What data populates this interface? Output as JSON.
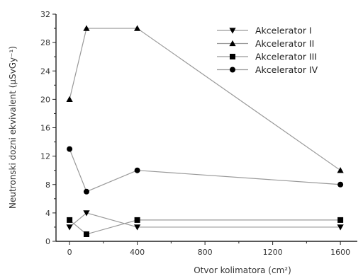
{
  "chart_data": {
    "type": "line",
    "xlabel": "Otvor kolimatora (cm²)",
    "ylabel": "Neutronski dozni ekvivalent (µSvGy⁻¹)",
    "xlim": [
      -80,
      1700
    ],
    "ylim": [
      0,
      32
    ],
    "xticks": [
      0,
      400,
      800,
      1200,
      1600
    ],
    "yticks": [
      0,
      4,
      8,
      12,
      16,
      20,
      24,
      28,
      32
    ],
    "grid": false,
    "legend_position": "top-right",
    "series": [
      {
        "name": "Akcelerator I",
        "marker": "triangle-down",
        "x": [
          0,
          100,
          400,
          1600
        ],
        "y": [
          2,
          4,
          2,
          2
        ]
      },
      {
        "name": "Akcelerator II",
        "marker": "triangle-up",
        "x": [
          0,
          100,
          400,
          1600
        ],
        "y": [
          20,
          30,
          30,
          10
        ]
      },
      {
        "name": "Akcelerator III",
        "marker": "square",
        "x": [
          0,
          100,
          400,
          1600
        ],
        "y": [
          3,
          1,
          3,
          3
        ]
      },
      {
        "name": "Akcelerator IV",
        "marker": "circle",
        "x": [
          0,
          100,
          400,
          1600
        ],
        "y": [
          13,
          7,
          10,
          8
        ]
      }
    ],
    "colors": {
      "line": "#999999",
      "marker": "#000000",
      "axis": "#222222"
    }
  }
}
